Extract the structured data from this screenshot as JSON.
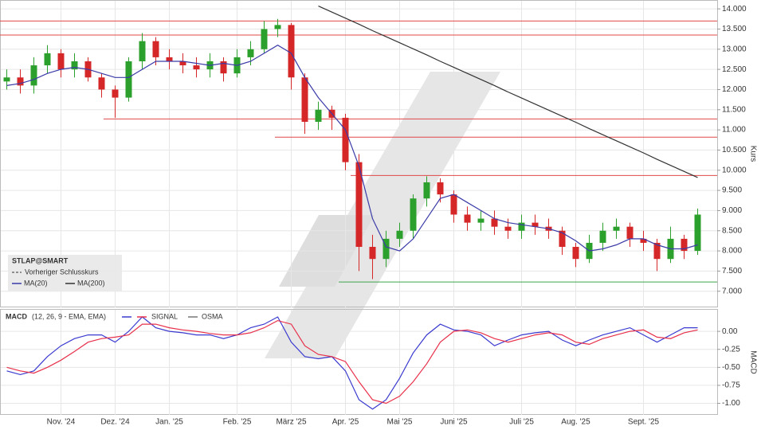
{
  "chart_data": [
    {
      "type": "candlestick",
      "legend_title": "STLAP@SMART",
      "reference_label": "Vorheriger Schlusskurs",
      "ylabel": "Kurs",
      "categories": [
        null,
        null,
        null,
        null,
        "Nov. '24",
        null,
        null,
        null,
        "Dez. '24",
        null,
        null,
        null,
        "Jan. '25",
        null,
        null,
        null,
        null,
        "Feb. '25",
        null,
        null,
        null,
        "März '25",
        null,
        null,
        null,
        "Apr. '25",
        null,
        null,
        null,
        "Mai '25",
        null,
        null,
        null,
        "Juni '25",
        null,
        null,
        null,
        null,
        "Juli '25",
        null,
        null,
        null,
        "Aug. '25",
        null,
        null,
        null,
        null,
        "Sept. '25",
        null,
        null,
        null,
        null
      ],
      "open": [
        12200,
        12300,
        12100,
        12600,
        12900,
        12500,
        12700,
        12300,
        12000,
        11800,
        12700,
        13200,
        12800,
        12700,
        12600,
        12500,
        12700,
        12400,
        12800,
        13000,
        13500,
        13600,
        12300,
        11200,
        11500,
        11300,
        10200,
        8100,
        7800,
        8300,
        8500,
        9300,
        9700,
        9400,
        8900,
        8700,
        8800,
        8600,
        8500,
        8700,
        8600,
        8500,
        8100,
        7800,
        8200,
        8500,
        8600,
        8300,
        8200,
        7800,
        8300,
        8000
      ],
      "high": [
        12500,
        12500,
        12800,
        13100,
        13000,
        12900,
        12800,
        12400,
        12100,
        12800,
        13400,
        13300,
        13000,
        12900,
        12800,
        12900,
        12800,
        13000,
        13200,
        13700,
        13750,
        13650,
        12400,
        11700,
        11600,
        11400,
        10400,
        8400,
        8500,
        8700,
        9400,
        9850,
        9800,
        9500,
        9100,
        9000,
        9000,
        8800,
        8900,
        8900,
        8800,
        8600,
        8200,
        8400,
        8700,
        8800,
        8700,
        8500,
        8300,
        8600,
        8400,
        9050
      ],
      "low": [
        12000,
        11900,
        11900,
        12400,
        12300,
        12300,
        12200,
        11800,
        11300,
        11700,
        12500,
        12600,
        12500,
        12400,
        12300,
        12300,
        12200,
        12300,
        12600,
        12900,
        13300,
        12000,
        10900,
        11000,
        11000,
        10000,
        7500,
        7300,
        7600,
        8100,
        8300,
        9100,
        9200,
        8700,
        8500,
        8500,
        8400,
        8300,
        8300,
        8400,
        8300,
        7900,
        7600,
        7700,
        8000,
        8300,
        8100,
        8000,
        7500,
        7700,
        7800,
        7900
      ],
      "close": [
        12300,
        12100,
        12600,
        12900,
        12500,
        12700,
        12300,
        12000,
        11800,
        12700,
        13200,
        12800,
        12700,
        12600,
        12500,
        12700,
        12400,
        12800,
        13000,
        13500,
        13600,
        12300,
        11200,
        11500,
        11300,
        10200,
        8100,
        7800,
        8300,
        8500,
        9300,
        9700,
        9400,
        8900,
        8700,
        8800,
        8600,
        8500,
        8700,
        8600,
        8500,
        8100,
        7800,
        8200,
        8500,
        8600,
        8300,
        8200,
        7800,
        8300,
        8000,
        8900
      ],
      "up_color": "#2ca02c",
      "down_color": "#d62728",
      "series": [
        {
          "name": "MA(20)",
          "color": "#3a3aa8",
          "values": [
            12100,
            12150,
            12250,
            12400,
            12500,
            12550,
            12500,
            12400,
            12300,
            12300,
            12500,
            12700,
            12700,
            12700,
            12650,
            12600,
            12650,
            12600,
            12700,
            12900,
            13100,
            12900,
            12300,
            11800,
            11400,
            11000,
            10100,
            8800,
            8100,
            8000,
            8300,
            8800,
            9300,
            9400,
            9200,
            9000,
            8800,
            8700,
            8650,
            8600,
            8550,
            8450,
            8250,
            8000,
            8050,
            8150,
            8300,
            8300,
            8150,
            8050,
            8050,
            8150
          ]
        },
        {
          "name": "MA(200)",
          "color": "#333333",
          "values": [
            null,
            null,
            null,
            null,
            null,
            null,
            null,
            null,
            null,
            null,
            null,
            null,
            null,
            null,
            null,
            null,
            null,
            null,
            null,
            null,
            null,
            null,
            null,
            14070,
            13920,
            13770,
            13620,
            13460,
            13310,
            13160,
            13010,
            12860,
            12700,
            12550,
            12400,
            12250,
            12100,
            11940,
            11790,
            11640,
            11490,
            11340,
            11190,
            11030,
            10880,
            10730,
            10580,
            10430,
            10270,
            10120,
            9970,
            9820
          ]
        }
      ],
      "levels": [
        {
          "value": 13700,
          "color": "#e04848"
        },
        {
          "value": 13350,
          "color": "#e04848"
        },
        {
          "value": 11270,
          "color": "#e04848"
        },
        {
          "value": 10820,
          "color": "#e04848"
        },
        {
          "value": 9870,
          "color": "#e04848"
        },
        {
          "value": 7230,
          "color": "#3fa34d"
        }
      ],
      "ylim": [
        6600,
        14200
      ],
      "yticks": [
        {
          "value": 7000,
          "label": "7.000"
        },
        {
          "value": 7500,
          "label": "7.500"
        },
        {
          "value": 8000,
          "label": "8.000"
        },
        {
          "value": 8500,
          "label": "8.500"
        },
        {
          "value": 9000,
          "label": "9.000"
        },
        {
          "value": 9500,
          "label": "9.500"
        },
        {
          "value": 10000,
          "label": "10.000"
        },
        {
          "value": 10500,
          "label": "10.500"
        },
        {
          "value": 11000,
          "label": "11.000"
        },
        {
          "value": 11500,
          "label": "11.500"
        },
        {
          "value": 12000,
          "label": "12.000"
        },
        {
          "value": 12500,
          "label": "12.500"
        },
        {
          "value": 13000,
          "label": "13.000"
        },
        {
          "value": 13500,
          "label": "13.500"
        },
        {
          "value": 14000,
          "label": "14.000"
        }
      ],
      "grid": true
    },
    {
      "type": "line",
      "subtitle": "(12, 26, 9 - EMA, EMA)",
      "ylabel": "MACD",
      "osma_label": "OSMA",
      "series": [
        {
          "name": "MACD",
          "color": "#3a3ad0",
          "values": [
            -0.55,
            -0.6,
            -0.55,
            -0.35,
            -0.2,
            -0.1,
            -0.05,
            -0.05,
            -0.15,
            0.0,
            0.2,
            0.05,
            0.0,
            -0.02,
            -0.05,
            -0.05,
            -0.1,
            -0.05,
            0.05,
            0.1,
            0.2,
            -0.15,
            -0.35,
            -0.38,
            -0.35,
            -0.55,
            -0.95,
            -1.08,
            -0.95,
            -0.65,
            -0.3,
            -0.05,
            0.1,
            0.02,
            0.0,
            -0.05,
            -0.2,
            -0.12,
            -0.05,
            -0.02,
            0.0,
            -0.12,
            -0.2,
            -0.12,
            -0.05,
            0.0,
            0.05,
            -0.05,
            -0.15,
            -0.05,
            0.05,
            0.05
          ]
        },
        {
          "name": "SIGNAL",
          "color": "#e8304a",
          "values": [
            -0.5,
            -0.55,
            -0.58,
            -0.5,
            -0.4,
            -0.28,
            -0.15,
            -0.1,
            -0.08,
            -0.05,
            0.1,
            0.1,
            0.05,
            0.02,
            0.0,
            -0.03,
            -0.05,
            -0.05,
            -0.02,
            0.05,
            0.15,
            0.1,
            -0.2,
            -0.32,
            -0.35,
            -0.42,
            -0.7,
            -0.95,
            -1.0,
            -0.9,
            -0.7,
            -0.45,
            -0.15,
            0.0,
            0.02,
            -0.02,
            -0.1,
            -0.15,
            -0.1,
            -0.05,
            -0.02,
            -0.05,
            -0.15,
            -0.18,
            -0.1,
            -0.05,
            0.0,
            0.02,
            -0.08,
            -0.1,
            -0.02,
            0.02
          ]
        }
      ],
      "ylim": [
        -1.16,
        0.3
      ],
      "yticks": [
        {
          "value": -1,
          "label": "-1.00"
        },
        -0.75,
        {
          "value": -0.5,
          "label": "-0.50"
        },
        -0.25,
        {
          "value": 0,
          "label": "0.00"
        }
      ],
      "grid": true
    }
  ]
}
